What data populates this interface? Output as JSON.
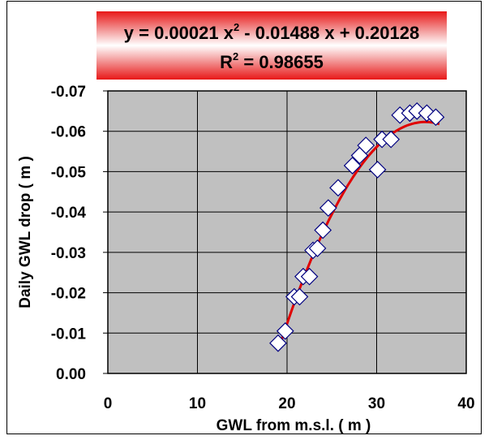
{
  "chart_data": {
    "type": "scatter",
    "title": "",
    "equation": {
      "line1_before": "y = 0.00021 x",
      "line1_sup": "2",
      "line1_after": " - 0.01488 x + 0.20128",
      "r2_label": "R",
      "r2_sup": "2",
      "r2_value": " = 0.98655"
    },
    "xlabel": "GWL from m.s.l. ( m )",
    "ylabel": "Daily GWL drop ( m )",
    "xlim": [
      0,
      40
    ],
    "ylim": [
      0,
      -0.07
    ],
    "x_ticks": [
      0,
      10,
      20,
      30,
      40
    ],
    "x_tick_labels": [
      "0",
      "10",
      "20",
      "30",
      "40"
    ],
    "y_ticks": [
      0,
      -0.01,
      -0.02,
      -0.03,
      -0.04,
      -0.05,
      -0.06,
      -0.07
    ],
    "y_tick_labels": [
      "0.00",
      "-0.01",
      "-0.02",
      "-0.03",
      "-0.04",
      "-0.05",
      "-0.06",
      "-0.07"
    ],
    "grid": true,
    "plot_background": "#c0c0c0",
    "marker": "diamond",
    "marker_color": "#000080",
    "fit_color": "#e00000",
    "series": [
      {
        "points": [
          [
            19.0,
            -0.0075
          ],
          [
            19.8,
            -0.0105
          ],
          [
            20.8,
            -0.019
          ],
          [
            21.4,
            -0.019
          ],
          [
            21.8,
            -0.024
          ],
          [
            22.5,
            -0.024
          ],
          [
            22.9,
            -0.0305
          ],
          [
            23.4,
            -0.031
          ],
          [
            24.0,
            -0.0355
          ],
          [
            24.6,
            -0.041
          ],
          [
            25.7,
            -0.046
          ],
          [
            27.3,
            -0.0515
          ],
          [
            28.1,
            -0.054
          ],
          [
            28.8,
            -0.0565
          ],
          [
            30.1,
            -0.0505
          ],
          [
            30.6,
            -0.058
          ],
          [
            31.6,
            -0.058
          ],
          [
            32.6,
            -0.064
          ],
          [
            33.7,
            -0.0645
          ],
          [
            34.5,
            -0.065
          ],
          [
            35.6,
            -0.0645
          ],
          [
            36.6,
            -0.0635
          ]
        ]
      }
    ],
    "fit": {
      "a": 0.00021,
      "b": -0.01488,
      "c": 0.20128,
      "x_range": [
        19.0,
        37.0
      ]
    }
  }
}
